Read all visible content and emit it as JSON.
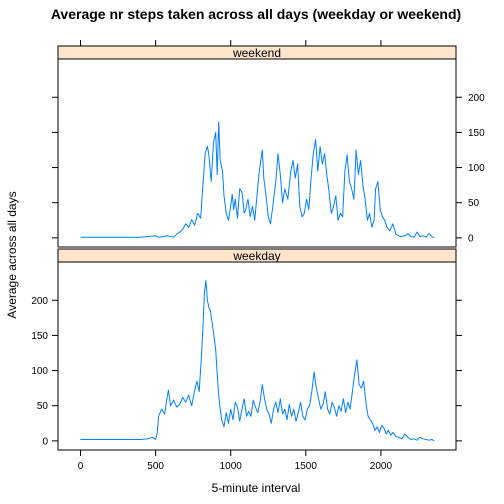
{
  "chart_data": {
    "type": "line",
    "title": "Average nr steps taken across all days (weekday or weekend)",
    "xlabel": "5-minute interval",
    "ylabel": "Average across all days",
    "xlim": [
      -150,
      2500
    ],
    "ylim": [
      -13,
      253
    ],
    "x_ticks": [
      0,
      500,
      1000,
      1500,
      2000
    ],
    "y_ticks": [
      0,
      50,
      100,
      150,
      200
    ],
    "line_color": "#0080ff",
    "strip_color": "#ffe5cc",
    "panels": [
      {
        "name": "weekend",
        "points": [
          [
            0,
            1
          ],
          [
            100,
            1
          ],
          [
            200,
            1
          ],
          [
            300,
            1
          ],
          [
            400,
            1
          ],
          [
            450,
            2
          ],
          [
            500,
            3
          ],
          [
            520,
            1
          ],
          [
            550,
            2
          ],
          [
            580,
            3
          ],
          [
            600,
            2
          ],
          [
            620,
            1
          ],
          [
            640,
            5
          ],
          [
            660,
            8
          ],
          [
            680,
            12
          ],
          [
            700,
            20
          ],
          [
            720,
            15
          ],
          [
            740,
            26
          ],
          [
            760,
            18
          ],
          [
            780,
            35
          ],
          [
            800,
            28
          ],
          [
            815,
            75
          ],
          [
            830,
            120
          ],
          [
            845,
            130
          ],
          [
            855,
            118
          ],
          [
            870,
            80
          ],
          [
            885,
            135
          ],
          [
            900,
            150
          ],
          [
            910,
            90
          ],
          [
            920,
            165
          ],
          [
            930,
            110
          ],
          [
            945,
            95
          ],
          [
            955,
            60
          ],
          [
            970,
            35
          ],
          [
            985,
            25
          ],
          [
            1000,
            45
          ],
          [
            1010,
            62
          ],
          [
            1020,
            40
          ],
          [
            1030,
            55
          ],
          [
            1045,
            28
          ],
          [
            1060,
            70
          ],
          [
            1075,
            65
          ],
          [
            1090,
            35
          ],
          [
            1100,
            40
          ],
          [
            1115,
            55
          ],
          [
            1130,
            30
          ],
          [
            1145,
            45
          ],
          [
            1160,
            25
          ],
          [
            1175,
            60
          ],
          [
            1190,
            95
          ],
          [
            1200,
            110
          ],
          [
            1210,
            125
          ],
          [
            1220,
            85
          ],
          [
            1235,
            60
          ],
          [
            1250,
            30
          ],
          [
            1265,
            20
          ],
          [
            1280,
            45
          ],
          [
            1300,
            80
          ],
          [
            1315,
            120
          ],
          [
            1330,
            90
          ],
          [
            1345,
            50
          ],
          [
            1360,
            70
          ],
          [
            1380,
            55
          ],
          [
            1400,
            95
          ],
          [
            1415,
            110
          ],
          [
            1430,
            85
          ],
          [
            1445,
            105
          ],
          [
            1460,
            45
          ],
          [
            1475,
            30
          ],
          [
            1490,
            35
          ],
          [
            1505,
            55
          ],
          [
            1520,
            40
          ],
          [
            1535,
            85
          ],
          [
            1550,
            120
          ],
          [
            1565,
            140
          ],
          [
            1580,
            95
          ],
          [
            1595,
            130
          ],
          [
            1610,
            105
          ],
          [
            1625,
            120
          ],
          [
            1640,
            90
          ],
          [
            1655,
            65
          ],
          [
            1670,
            35
          ],
          [
            1685,
            45
          ],
          [
            1700,
            60
          ],
          [
            1715,
            25
          ],
          [
            1730,
            35
          ],
          [
            1745,
            30
          ],
          [
            1760,
            95
          ],
          [
            1775,
            118
          ],
          [
            1790,
            80
          ],
          [
            1805,
            70
          ],
          [
            1820,
            55
          ],
          [
            1835,
            125
          ],
          [
            1850,
            90
          ],
          [
            1865,
            110
          ],
          [
            1880,
            75
          ],
          [
            1895,
            55
          ],
          [
            1910,
            25
          ],
          [
            1925,
            35
          ],
          [
            1940,
            15
          ],
          [
            1955,
            25
          ],
          [
            1965,
            70
          ],
          [
            1980,
            80
          ],
          [
            1995,
            40
          ],
          [
            2010,
            30
          ],
          [
            2025,
            25
          ],
          [
            2040,
            15
          ],
          [
            2060,
            10
          ],
          [
            2080,
            20
          ],
          [
            2100,
            5
          ],
          [
            2130,
            2
          ],
          [
            2160,
            3
          ],
          [
            2180,
            6
          ],
          [
            2200,
            2
          ],
          [
            2220,
            1
          ],
          [
            2240,
            8
          ],
          [
            2260,
            2
          ],
          [
            2280,
            3
          ],
          [
            2300,
            1
          ],
          [
            2320,
            6
          ],
          [
            2340,
            2
          ],
          [
            2355,
            0
          ]
        ]
      },
      {
        "name": "weekday",
        "points": [
          [
            0,
            2
          ],
          [
            100,
            2
          ],
          [
            200,
            2
          ],
          [
            300,
            2
          ],
          [
            400,
            2
          ],
          [
            450,
            3
          ],
          [
            480,
            5
          ],
          [
            500,
            2
          ],
          [
            510,
            10
          ],
          [
            520,
            35
          ],
          [
            540,
            45
          ],
          [
            560,
            38
          ],
          [
            575,
            60
          ],
          [
            585,
            72
          ],
          [
            600,
            50
          ],
          [
            620,
            58
          ],
          [
            640,
            48
          ],
          [
            660,
            52
          ],
          [
            680,
            62
          ],
          [
            700,
            55
          ],
          [
            720,
            65
          ],
          [
            740,
            50
          ],
          [
            760,
            72
          ],
          [
            775,
            85
          ],
          [
            790,
            70
          ],
          [
            805,
            120
          ],
          [
            815,
            160
          ],
          [
            825,
            210
          ],
          [
            835,
            228
          ],
          [
            845,
            200
          ],
          [
            855,
            190
          ],
          [
            865,
            185
          ],
          [
            875,
            170
          ],
          [
            885,
            155
          ],
          [
            900,
            130
          ],
          [
            910,
            95
          ],
          [
            920,
            65
          ],
          [
            930,
            45
          ],
          [
            940,
            30
          ],
          [
            955,
            20
          ],
          [
            970,
            40
          ],
          [
            985,
            25
          ],
          [
            1000,
            45
          ],
          [
            1015,
            30
          ],
          [
            1030,
            55
          ],
          [
            1045,
            48
          ],
          [
            1060,
            28
          ],
          [
            1075,
            45
          ],
          [
            1090,
            60
          ],
          [
            1105,
            35
          ],
          [
            1120,
            42
          ],
          [
            1135,
            35
          ],
          [
            1150,
            58
          ],
          [
            1165,
            48
          ],
          [
            1180,
            40
          ],
          [
            1195,
            55
          ],
          [
            1210,
            80
          ],
          [
            1225,
            60
          ],
          [
            1240,
            45
          ],
          [
            1255,
            38
          ],
          [
            1270,
            25
          ],
          [
            1285,
            45
          ],
          [
            1300,
            55
          ],
          [
            1315,
            40
          ],
          [
            1330,
            60
          ],
          [
            1345,
            38
          ],
          [
            1360,
            45
          ],
          [
            1375,
            30
          ],
          [
            1390,
            52
          ],
          [
            1405,
            35
          ],
          [
            1420,
            45
          ],
          [
            1435,
            28
          ],
          [
            1450,
            40
          ],
          [
            1465,
            55
          ],
          [
            1480,
            35
          ],
          [
            1495,
            30
          ],
          [
            1510,
            45
          ],
          [
            1525,
            50
          ],
          [
            1540,
            70
          ],
          [
            1555,
            98
          ],
          [
            1570,
            75
          ],
          [
            1585,
            60
          ],
          [
            1600,
            45
          ],
          [
            1615,
            52
          ],
          [
            1630,
            70
          ],
          [
            1645,
            45
          ],
          [
            1660,
            38
          ],
          [
            1675,
            55
          ],
          [
            1690,
            48
          ],
          [
            1705,
            35
          ],
          [
            1720,
            50
          ],
          [
            1735,
            42
          ],
          [
            1750,
            60
          ],
          [
            1765,
            40
          ],
          [
            1780,
            55
          ],
          [
            1795,
            45
          ],
          [
            1810,
            70
          ],
          [
            1825,
            95
          ],
          [
            1840,
            115
          ],
          [
            1855,
            80
          ],
          [
            1870,
            75
          ],
          [
            1885,
            85
          ],
          [
            1900,
            55
          ],
          [
            1915,
            35
          ],
          [
            1930,
            30
          ],
          [
            1945,
            25
          ],
          [
            1960,
            15
          ],
          [
            1975,
            20
          ],
          [
            1990,
            12
          ],
          [
            2005,
            22
          ],
          [
            2020,
            18
          ],
          [
            2035,
            10
          ],
          [
            2050,
            15
          ],
          [
            2065,
            8
          ],
          [
            2080,
            12
          ],
          [
            2100,
            6
          ],
          [
            2120,
            5
          ],
          [
            2140,
            3
          ],
          [
            2160,
            10
          ],
          [
            2180,
            5
          ],
          [
            2200,
            2
          ],
          [
            2220,
            3
          ],
          [
            2240,
            1
          ],
          [
            2260,
            5
          ],
          [
            2280,
            3
          ],
          [
            2300,
            2
          ],
          [
            2320,
            1
          ],
          [
            2340,
            2
          ],
          [
            2355,
            0
          ]
        ]
      }
    ]
  }
}
